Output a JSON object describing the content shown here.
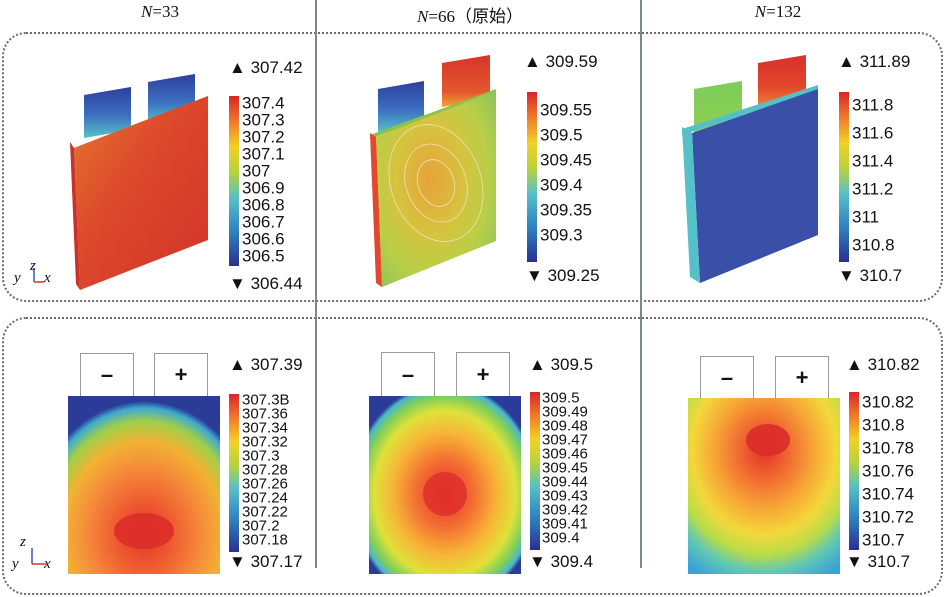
{
  "columns": [
    {
      "n_symbol": "N",
      "n_value": "=33",
      "suffix": ""
    },
    {
      "n_symbol": "N",
      "n_value": "=66",
      "suffix": "（原始）"
    },
    {
      "n_symbol": "N",
      "n_value": "=132",
      "suffix": ""
    }
  ],
  "top_row": [
    {
      "max": "307.42",
      "min": "306.44",
      "ticks": [
        "307.4",
        "307.3",
        "307.2",
        "307.1",
        "307",
        "306.9",
        "306.8",
        "306.7",
        "306.6",
        "306.5"
      ]
    },
    {
      "max": "309.59",
      "min": "309.25",
      "ticks": [
        "309.55",
        "309.5",
        "309.45",
        "309.4",
        "309.35",
        "309.3"
      ]
    },
    {
      "max": "311.89",
      "min": "310.7",
      "ticks": [
        "311.8",
        "311.6",
        "311.4",
        "311.2",
        "311",
        "310.8"
      ]
    }
  ],
  "bottom_row": [
    {
      "max": "307.39",
      "min": "307.17",
      "ticks": [
        "307.3B",
        "307.36",
        "307.34",
        "307.32",
        "307.3",
        "307.28",
        "307.26",
        "307.24",
        "307.22",
        "307.2",
        "307.18"
      ]
    },
    {
      "max": "309.5",
      "min": "309.4",
      "ticks": [
        "309.5",
        "309.49",
        "309.48",
        "309.47",
        "309.46",
        "309.45",
        "309.44",
        "309.43",
        "309.42",
        "309.41",
        "309.4"
      ]
    },
    {
      "max": "310.82",
      "min": "310.7",
      "ticks": [
        "310.82",
        "310.8",
        "310.78",
        "310.76",
        "310.74",
        "310.72",
        "310.7"
      ]
    }
  ],
  "tabs": {
    "negative": "–",
    "positive": "+"
  },
  "axes": {
    "y": "y",
    "z": "z",
    "x": "x"
  },
  "markers": {
    "max": "▲",
    "min": "▼"
  }
}
